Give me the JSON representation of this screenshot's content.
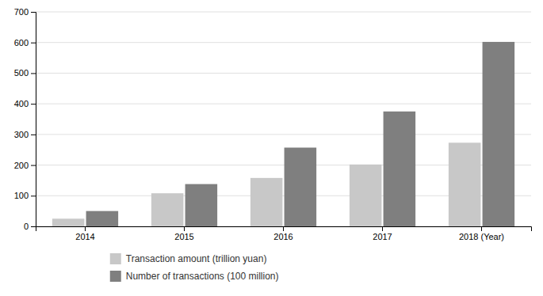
{
  "chart_data": {
    "type": "bar",
    "categories": [
      "2014",
      "2015",
      "2016",
      "2017",
      "2018 (Year)"
    ],
    "series": [
      {
        "name": "Transaction amount (trillion yuan)",
        "color": "#c8c8c8",
        "values": [
          25,
          108,
          158,
          202,
          273
        ]
      },
      {
        "name": "Number of transactions (100 million)",
        "color": "#7f7f7f",
        "values": [
          50,
          138,
          257,
          375,
          602
        ]
      }
    ],
    "ylim": [
      0,
      700
    ],
    "yticks": [
      0,
      100,
      200,
      300,
      400,
      500,
      600,
      700
    ],
    "grid": true,
    "legend": "bottom"
  }
}
